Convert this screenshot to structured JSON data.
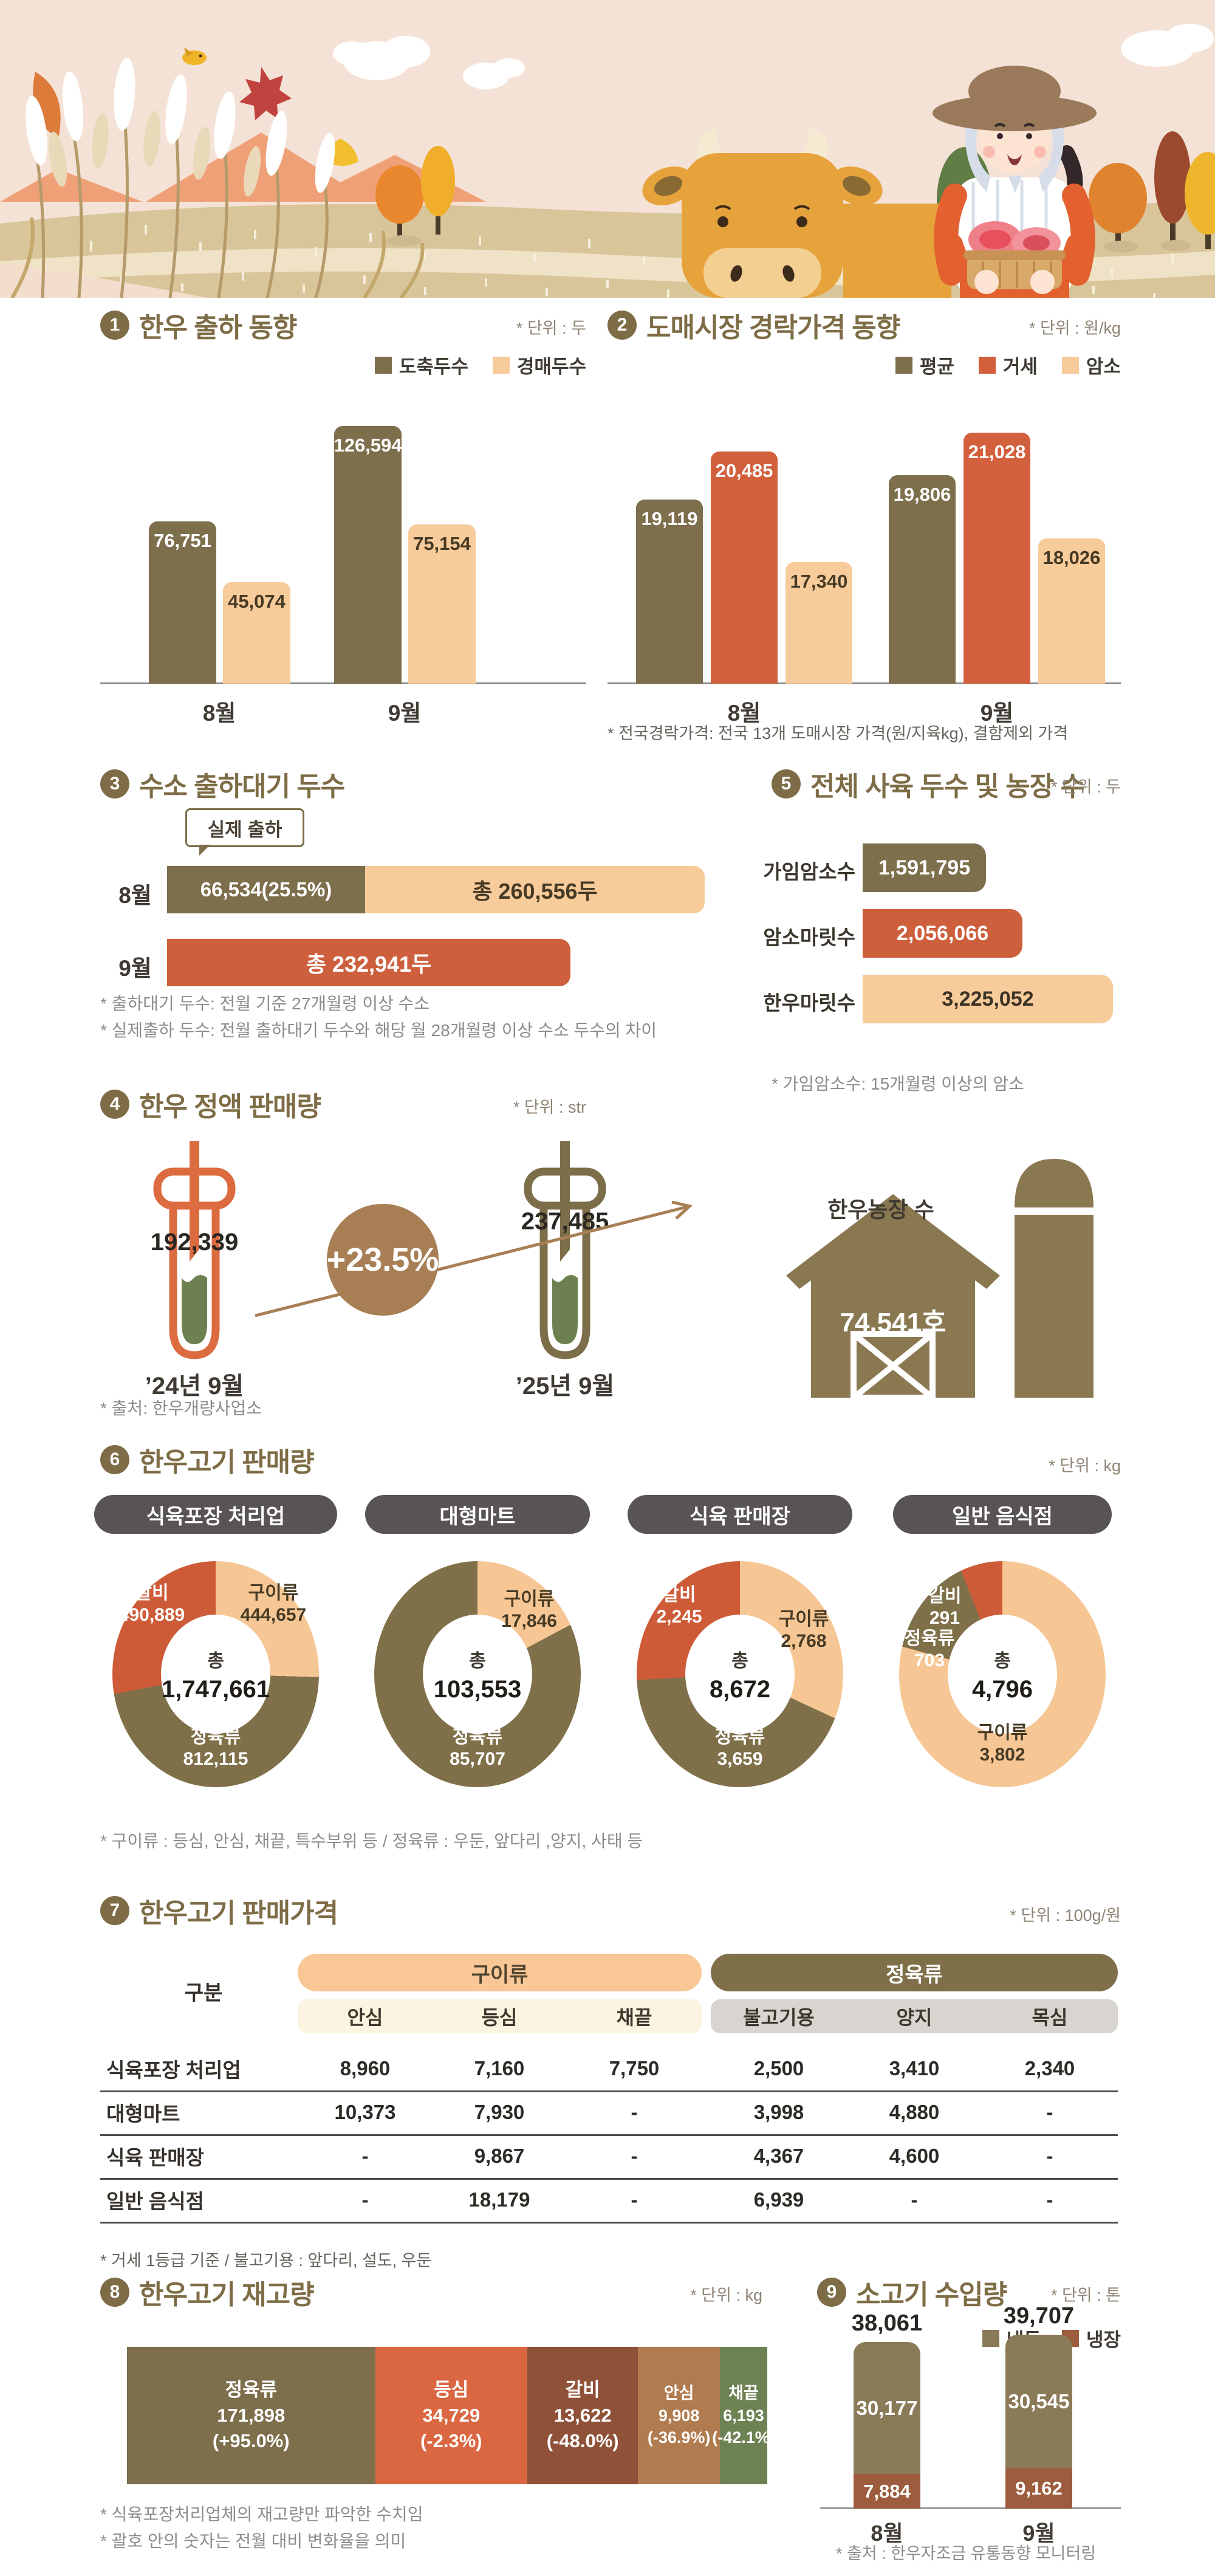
{
  "sections": {
    "s1": {
      "badge": "1",
      "title": "한우 출하 동향",
      "unit": "* 단위 : 두"
    },
    "s2": {
      "badge": "2",
      "title": "도매시장 경락가격 동향",
      "unit": "* 단위 : 원/kg",
      "footnote": "* 전국경락가격: 전국 13개 도매시장 가격(원/지육kg), 결함제외 가격"
    },
    "s3": {
      "badge": "3",
      "title": "수소 출하대기 두수",
      "callout": "실제 출하",
      "notes": [
        "* 출하대기 두수: 전월 기준 27개월령 이상 수소",
        "* 실제출하 두수: 전월 출하대기 두수와 해당 월 28개월령 이상 수소 두수의 차이"
      ]
    },
    "s4": {
      "badge": "4",
      "title": "한우 정액 판매량",
      "unit": "* 단위 : str",
      "source": "* 출처: 한우개량사업소"
    },
    "s5": {
      "badge": "5",
      "title": "전체 사육 두수 및 농장 수",
      "unit": "* 단위 : 두",
      "note": "* 가임암소수: 15개월령 이상의 암소",
      "farm": {
        "label": "한우농장 수",
        "value": "74,541호"
      }
    },
    "s6": {
      "badge": "6",
      "title": "한우고기 판매량",
      "unit": "* 단위 : kg",
      "footnote": "* 구이류 : 등심, 안심, 채끝, 특수부위 등 / 정육류 : 우둔, 앞다리 ,양지, 사태 등"
    },
    "s7": {
      "badge": "7",
      "title": "한우고기 판매가격",
      "unit": "* 단위 : 100g/원",
      "footnote": "* 거세 1등급 기준 / 불고기용 : 앞다리, 설도, 우둔"
    },
    "s8": {
      "badge": "8",
      "title": "한우고기 재고량",
      "unit": "* 단위 : kg",
      "notes": [
        "* 식육포장처리업체의 재고량만 파악한 수치임",
        "* 괄호 안의 숫자는 전월 대비 변화율을 의미"
      ]
    },
    "s9": {
      "badge": "9",
      "title": "소고기 수입량",
      "unit": "* 단위 : 톤",
      "source": "* 출처 : 한우자조금 유통동향 모니터링"
    }
  },
  "chart_data": [
    {
      "id": "cattle-shipment",
      "type": "bar",
      "title": "한우 출하 동향",
      "ylabel": "두",
      "categories": [
        "8월",
        "9월"
      ],
      "series": [
        {
          "name": "도축두수",
          "color": "#7d6e4c",
          "text_color": "#ffffff",
          "values": [
            76751,
            126594
          ]
        },
        {
          "name": "경매두수",
          "color": "#f8cb9b",
          "text_color": "#463a24",
          "values": [
            45074,
            75154
          ]
        }
      ],
      "legend_position": "top-right",
      "grid": false
    },
    {
      "id": "auction-price",
      "type": "bar",
      "title": "도매시장 경락가격 동향",
      "ylabel": "원/kg",
      "categories": [
        "8월",
        "9월"
      ],
      "series": [
        {
          "name": "평균",
          "color": "#7d6e4c",
          "text_color": "#ffffff",
          "values": [
            19119,
            19806
          ]
        },
        {
          "name": "거세",
          "color": "#d2603c",
          "text_color": "#ffffff",
          "values": [
            20485,
            21028
          ]
        },
        {
          "name": "암소",
          "color": "#f8cb9b",
          "text_color": "#463a24",
          "values": [
            17340,
            18026
          ]
        }
      ],
      "legend_position": "top-right",
      "grid": false
    },
    {
      "id": "waiting-bulls",
      "type": "bar",
      "orientation": "horizontal",
      "title": "수소 출하대기 두수",
      "unit": "두",
      "rows": [
        {
          "category": "8월",
          "total": 260556,
          "total_label": "총 260,556두",
          "segments": [
            {
              "name": "실제 출하",
              "value": 66534,
              "label": "66,534(25.5%)",
              "color": "#7d6e4c",
              "text_color": "#ffffff"
            },
            {
              "name": "출하대기",
              "value": 194022,
              "color": "#f8cb9b",
              "text_color": "#463a24"
            }
          ],
          "display": {
            "width_pct": 100,
            "seg1_pct": 36.8
          }
        },
        {
          "category": "9월",
          "total": 232941,
          "total_label": "총 232,941두",
          "color": "#cd5f3d",
          "text_color": "#ffffff",
          "display": {
            "width_pct": 75
          }
        }
      ]
    },
    {
      "id": "semen-sales",
      "type": "bar",
      "subtype": "pictorial-testtube",
      "title": "한우 정액 판매량",
      "unit": "str",
      "points": [
        {
          "label": "’24년 9월",
          "value": 192339,
          "color": "#dd6b40"
        },
        {
          "label": "’25년 9월",
          "value": 237485,
          "color": "#7d6e4a"
        }
      ],
      "change_pct": 23.5,
      "change_label": "+23.5%",
      "liquid_color": "#6d8150"
    },
    {
      "id": "herd-size",
      "type": "bar",
      "orientation": "horizontal",
      "title": "전체 사육 두수 및 농장 수",
      "unit": "두",
      "xmax": 3225052,
      "rows": [
        {
          "category": "가임암소수",
          "value": 1591795,
          "color": "#7d6e4c",
          "text_color": "#ffffff"
        },
        {
          "category": "암소마릿수",
          "value": 2056066,
          "color": "#cd5f3d",
          "text_color": "#ffffff"
        },
        {
          "category": "한우마릿수",
          "value": 3225052,
          "color": "#f8cb9b",
          "text_color": "#3c3325"
        }
      ],
      "farm_count": "74,541호"
    },
    {
      "id": "beef-sales-donuts",
      "type": "pie",
      "subtype": "donut",
      "unit": "kg",
      "center_label": "총",
      "charts": [
        {
          "title": "식육포장 처리업",
          "total": 1747661,
          "slices": [
            {
              "name": "구이류",
              "value": 444657,
              "color": "#f6c795",
              "text_color": "#463a24"
            },
            {
              "name": "정육류",
              "value": 812115,
              "color": "#7f7049",
              "text_color": "#ffffff"
            },
            {
              "name": "갈비",
              "value": 490889,
              "color": "#ce5b38",
              "text_color": "#ffffff"
            }
          ]
        },
        {
          "title": "대형마트",
          "total": 103553,
          "slices": [
            {
              "name": "구이류",
              "value": 17846,
              "color": "#f6c795",
              "text_color": "#463a24"
            },
            {
              "name": "정육류",
              "value": 85707,
              "color": "#7f7049",
              "text_color": "#ffffff"
            }
          ]
        },
        {
          "title": "식육 판매장",
          "total": 8672,
          "slices": [
            {
              "name": "구이류",
              "value": 2768,
              "color": "#f6c795",
              "text_color": "#463a24"
            },
            {
              "name": "정육류",
              "value": 3659,
              "color": "#7f7049",
              "text_color": "#ffffff"
            },
            {
              "name": "갈비",
              "value": 2245,
              "color": "#ce5b38",
              "text_color": "#ffffff"
            }
          ]
        },
        {
          "title": "일반 음식점",
          "total": 4796,
          "slices": [
            {
              "name": "구이류",
              "value": 3802,
              "color": "#f6c795",
              "text_color": "#463a24"
            },
            {
              "name": "정육류",
              "value": 703,
              "color": "#7f7049",
              "text_color": "#ffffff"
            },
            {
              "name": "갈비",
              "value": 291,
              "color": "#ce5b38",
              "text_color": "#ffffff"
            }
          ]
        }
      ]
    },
    {
      "id": "price-table",
      "type": "table",
      "unit": "100g/원",
      "row_header": "구분",
      "col_groups": [
        {
          "name": "구이류",
          "bg": "#f8c795",
          "text_color": "#4f4430",
          "sub_bg": "#fdf3e1",
          "columns": [
            "안심",
            "등심",
            "채끝"
          ]
        },
        {
          "name": "정육류",
          "bg": "#7f7049",
          "text_color": "#ffffff",
          "sub_bg": "#d8d5d1",
          "columns": [
            "불고기용",
            "양지",
            "목심"
          ]
        }
      ],
      "rows": [
        {
          "label": "식육포장 처리업",
          "values": [
            "8,960",
            "7,160",
            "7,750",
            "2,500",
            "3,410",
            "2,340"
          ]
        },
        {
          "label": "대형마트",
          "values": [
            "10,373",
            "7,930",
            "-",
            "3,998",
            "4,880",
            "-"
          ]
        },
        {
          "label": "식육 판매장",
          "values": [
            "-",
            "9,867",
            "-",
            "4,367",
            "4,600",
            "-"
          ]
        },
        {
          "label": "일반 음식점",
          "values": [
            "-",
            "18,179",
            "-",
            "6,939",
            "-",
            "-"
          ]
        }
      ]
    },
    {
      "id": "beef-stock",
      "type": "bar",
      "subtype": "stacked-horizontal",
      "unit": "kg",
      "segments": [
        {
          "name": "정육류",
          "value": 171898,
          "change": "+95.0%",
          "color": "#7d6e4c"
        },
        {
          "name": "등심",
          "value": 34729,
          "change": "-2.3%",
          "color": "#da6742"
        },
        {
          "name": "갈비",
          "value": 13622,
          "change": "-48.0%",
          "color": "#8f5138"
        },
        {
          "name": "안심",
          "value": 9908,
          "change": "-36.9%",
          "color": "#b07b4e"
        },
        {
          "name": "채끝",
          "value": 6193,
          "change": "-42.1%",
          "color": "#6d8253"
        }
      ],
      "display_widths_pct": [
        38.8,
        23.8,
        17.3,
        12.8,
        7.4
      ]
    },
    {
      "id": "beef-imports",
      "type": "bar",
      "subtype": "stacked",
      "unit": "톤",
      "categories": [
        "8월",
        "9월"
      ],
      "totals": [
        38061,
        39707
      ],
      "series": [
        {
          "name": "냉동",
          "color": "#8a7a57",
          "text_color": "#ffffff",
          "values": [
            30177,
            30545
          ]
        },
        {
          "name": "냉장",
          "color": "#9d5c3d",
          "text_color": "#ffffff",
          "values": [
            7884,
            9162
          ]
        }
      ],
      "legend_position": "top-right"
    }
  ]
}
